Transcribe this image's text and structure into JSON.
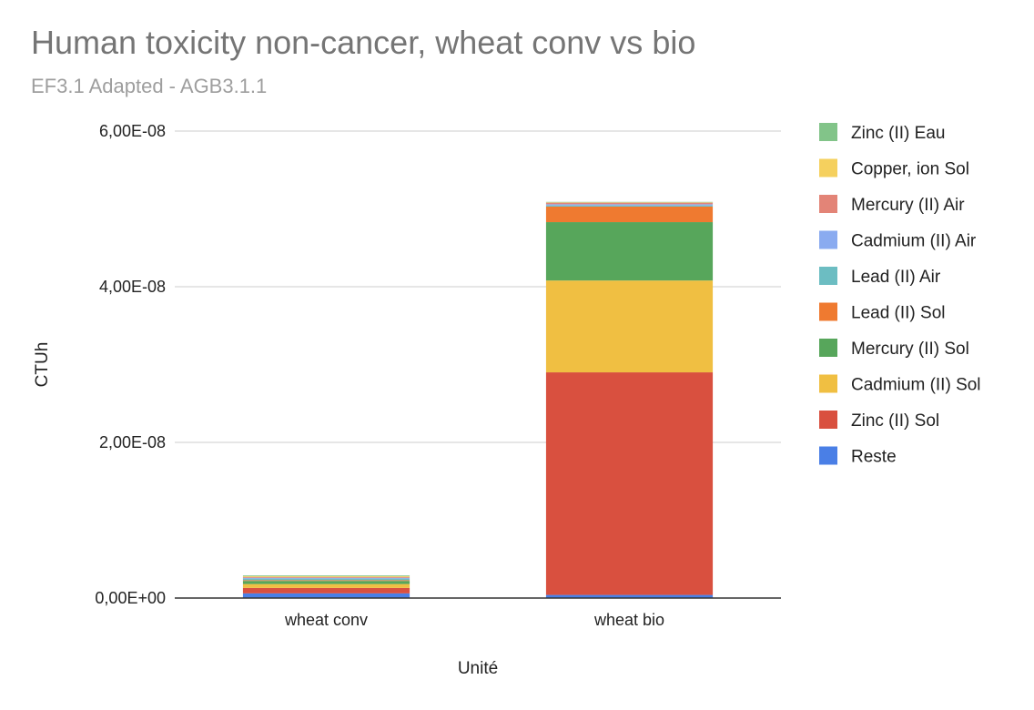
{
  "title": "Human toxicity non-cancer, wheat conv vs bio",
  "subtitle": "EF3.1 Adapted - AGB3.1.1",
  "chart_data": {
    "type": "bar",
    "stacked": true,
    "title": "Human toxicity non-cancer, wheat conv vs bio",
    "subtitle": "EF3.1 Adapted - AGB3.1.1",
    "xlabel": "Unité",
    "ylabel": "CTUh",
    "categories": [
      "wheat conv",
      "wheat bio"
    ],
    "ylim": [
      0,
      6e-08
    ],
    "yticks": [
      0,
      2e-08,
      4e-08,
      6e-08
    ],
    "ytick_labels": [
      "0,00E+00",
      "2,00E-08",
      "4,00E-08",
      "6,00E-08"
    ],
    "grid": true,
    "legend_position": "right",
    "series": [
      {
        "name": "Reste",
        "color": "#4a7fe6",
        "values": [
          6e-10,
          4e-10
        ]
      },
      {
        "name": "Zinc (II) Sol",
        "color": "#d9503f",
        "values": [
          7e-10,
          2.86e-08
        ]
      },
      {
        "name": "Cadmium (II) Sol",
        "color": "#f0bf42",
        "values": [
          5e-10,
          1.18e-08
        ]
      },
      {
        "name": "Mercury (II) Sol",
        "color": "#57a65b",
        "values": [
          4e-10,
          7.5e-09
        ]
      },
      {
        "name": "Lead (II) Sol",
        "color": "#ef7a30",
        "values": [
          1e-10,
          2e-09
        ]
      },
      {
        "name": "Lead (II) Air",
        "color": "#6cbdc2",
        "values": [
          2e-10,
          1.5e-10
        ]
      },
      {
        "name": "Cadmium (II) Air",
        "color": "#8aabf0",
        "values": [
          1e-10,
          1.5e-10
        ]
      },
      {
        "name": "Mercury (II) Air",
        "color": "#e38477",
        "values": [
          1e-10,
          2e-10
        ]
      },
      {
        "name": "Copper, ion Sol",
        "color": "#f5d05e",
        "values": [
          1e-10,
          5e-11
        ]
      },
      {
        "name": "Zinc (II) Eau",
        "color": "#82c489",
        "values": [
          1e-10,
          5e-11
        ]
      }
    ]
  }
}
